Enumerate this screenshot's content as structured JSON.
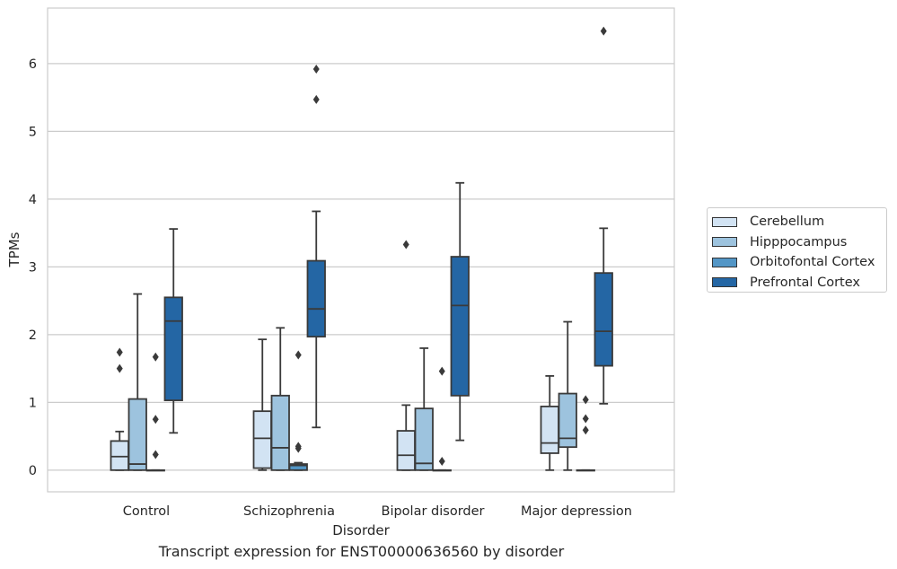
{
  "caption": "Transcript expression for ENST00000636560 by disorder",
  "chart_data": {
    "type": "box",
    "xlabel": "Disorder",
    "ylabel": "TPMs",
    "categories": [
      "Control",
      "Schizophrenia",
      "Bipolar disorder",
      "Major depression"
    ],
    "ylim": [
      -0.32,
      6.82
    ],
    "yticks": [
      0,
      1,
      2,
      3,
      4,
      5,
      6
    ],
    "grid": "horizontal",
    "legend_position": "right",
    "series": [
      {
        "name": "Cerebellum",
        "color": "#d2e3f3",
        "boxes": [
          {
            "whislo": 0,
            "q1": 0,
            "med": 0.2,
            "q3": 0.43,
            "whishi": 0.57,
            "fliers": [
              1.5,
              1.74
            ]
          },
          {
            "whislo": 0,
            "q1": 0.03,
            "med": 0.47,
            "q3": 0.87,
            "whishi": 1.93,
            "fliers": []
          },
          {
            "whislo": 0,
            "q1": 0,
            "med": 0.22,
            "q3": 0.58,
            "whishi": 0.96,
            "fliers": [
              3.33
            ]
          },
          {
            "whislo": 0,
            "q1": 0.25,
            "med": 0.4,
            "q3": 0.94,
            "whishi": 1.39,
            "fliers": []
          }
        ]
      },
      {
        "name": "Hipppocampus",
        "color": "#9dc3de",
        "boxes": [
          {
            "whislo": 0,
            "q1": 0,
            "med": 0.09,
            "q3": 1.05,
            "whishi": 2.6,
            "fliers": []
          },
          {
            "whislo": 0,
            "q1": 0,
            "med": 0.33,
            "q3": 1.1,
            "whishi": 2.1,
            "fliers": []
          },
          {
            "whislo": 0,
            "q1": 0,
            "med": 0.1,
            "q3": 0.91,
            "whishi": 1.8,
            "fliers": []
          },
          {
            "whislo": 0,
            "q1": 0.34,
            "med": 0.47,
            "q3": 1.13,
            "whishi": 2.19,
            "fliers": []
          }
        ]
      },
      {
        "name": "Orbitofontal Cortex",
        "color": "#5396c6",
        "boxes": [
          {
            "whislo": 0,
            "q1": 0,
            "med": 0,
            "q3": 0,
            "whishi": 0,
            "fliers": [
              0.23,
              0.75,
              1.67
            ]
          },
          {
            "whislo": 0,
            "q1": 0,
            "med": 0.07,
            "q3": 0.09,
            "whishi": 0.11,
            "fliers": [
              0.32,
              0.35,
              1.7
            ]
          },
          {
            "whislo": 0,
            "q1": 0,
            "med": 0,
            "q3": 0,
            "whishi": 0,
            "fliers": [
              0.13,
              1.46
            ]
          },
          {
            "whislo": 0,
            "q1": 0,
            "med": 0,
            "q3": 0,
            "whishi": 0,
            "fliers": [
              0.59,
              0.76,
              1.04
            ]
          }
        ]
      },
      {
        "name": "Prefrontal Cortex",
        "color": "#2466a4",
        "boxes": [
          {
            "whislo": 0.55,
            "q1": 1.03,
            "med": 2.2,
            "q3": 2.55,
            "whishi": 3.56,
            "fliers": []
          },
          {
            "whislo": 0.63,
            "q1": 1.97,
            "med": 2.38,
            "q3": 3.09,
            "whishi": 3.82,
            "fliers": [
              5.47,
              5.92
            ]
          },
          {
            "whislo": 0.44,
            "q1": 1.1,
            "med": 2.43,
            "q3": 3.15,
            "whishi": 4.24,
            "fliers": []
          },
          {
            "whislo": 0.98,
            "q1": 1.54,
            "med": 2.05,
            "q3": 2.91,
            "whishi": 3.57,
            "fliers": [
              6.48
            ]
          }
        ]
      }
    ]
  }
}
